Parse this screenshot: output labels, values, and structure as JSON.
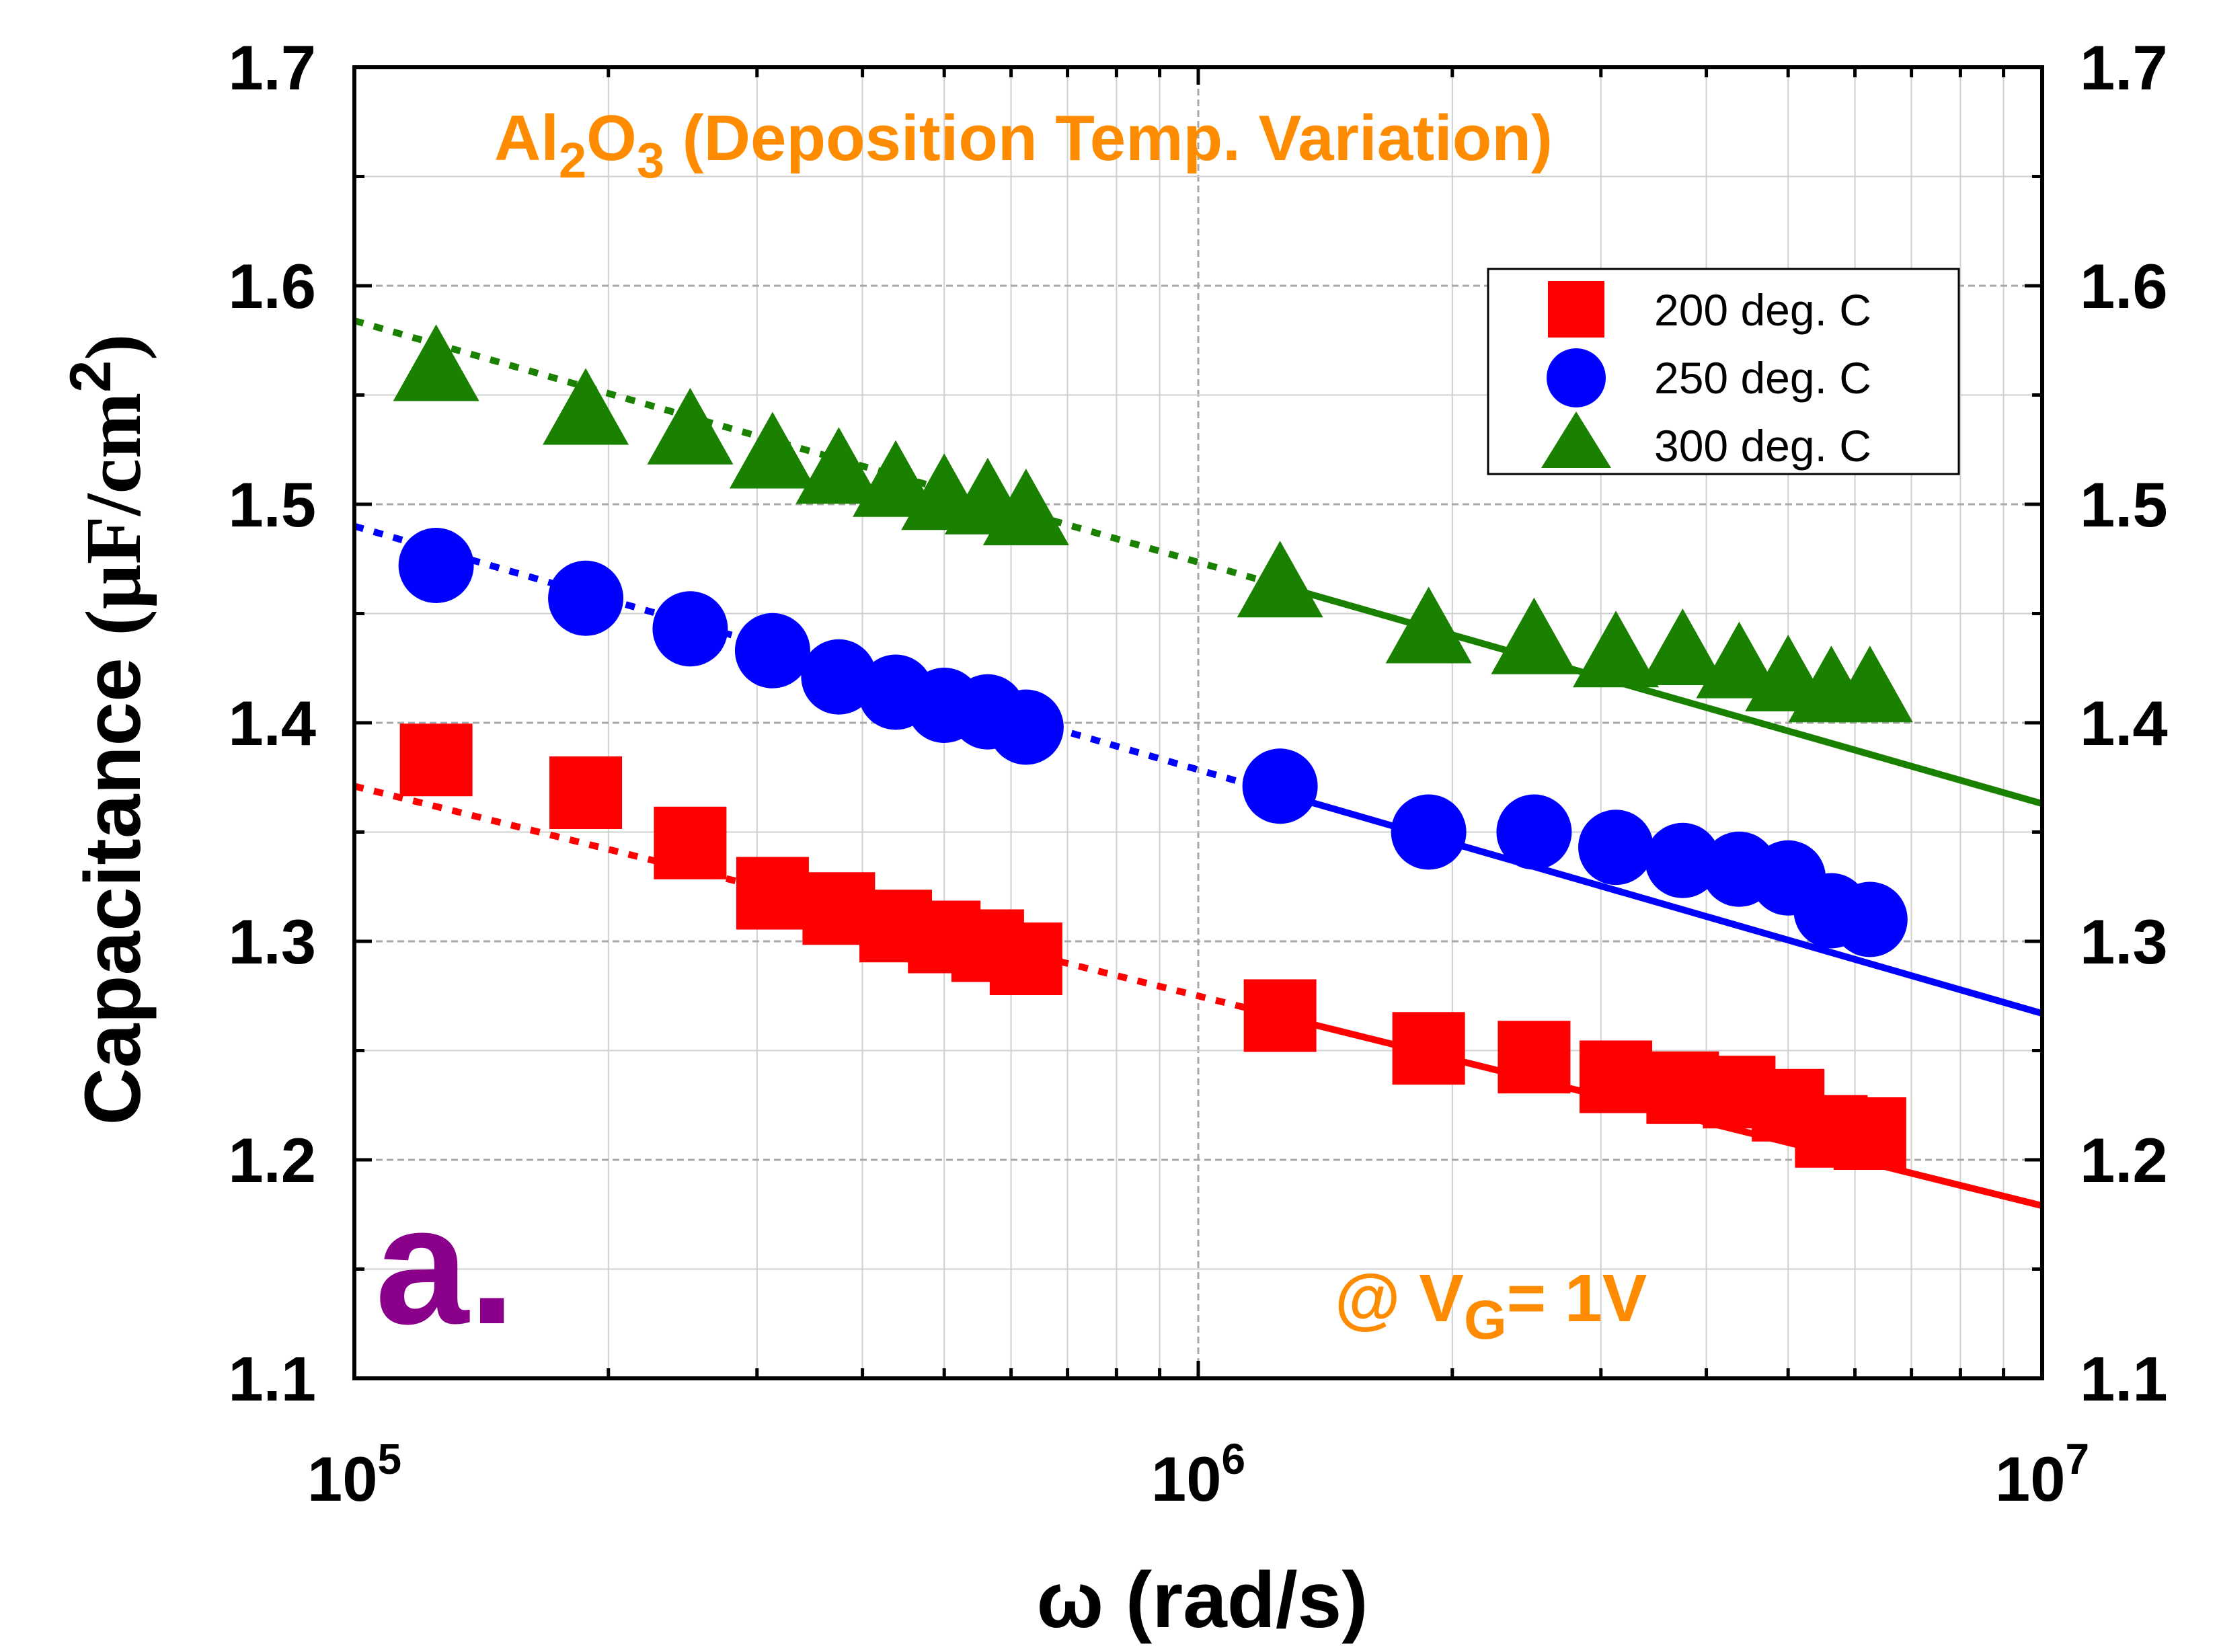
{
  "chart_data": {
    "type": "scatter",
    "title": "Al2O3 (Deposition Temp. Variation)",
    "title_parts": {
      "a": "Al",
      "b": "2",
      "c": "O",
      "d": "3",
      "e": " (Deposition Temp. Variation)"
    },
    "xlabel": "ω (rad/s)",
    "xscale": "log",
    "xlim": [
      100000,
      10000000
    ],
    "x_ticks": [
      {
        "base": "10",
        "exp": "5",
        "value": 100000
      },
      {
        "base": "10",
        "exp": "6",
        "value": 1000000
      },
      {
        "base": "10",
        "exp": "7",
        "value": 10000000
      }
    ],
    "ylabel_parts": {
      "main": "Capacitance ",
      "unit": "(μF/cm",
      "sup": "2",
      "close": ")"
    },
    "ylim": [
      1.1,
      1.7
    ],
    "y_ticks": [
      "1.1",
      "1.2",
      "1.3",
      "1.4",
      "1.5",
      "1.6",
      "1.7"
    ],
    "annotation": {
      "prefix": "@ V",
      "sub": "G",
      "suffix": "= 1V"
    },
    "panel_label": "a.",
    "grid": true,
    "legend_position": "top-right",
    "colors": {
      "s200": "#ff0000",
      "s250": "#0000ff",
      "s300": "#1a8000",
      "annotation": "#ff8c00",
      "panel": "#8b008b"
    },
    "x": [
      125000,
      188000,
      250000,
      313000,
      375000,
      438000,
      500000,
      563000,
      625000,
      1250000,
      1875000,
      2500000,
      3125000,
      3750000,
      4375000,
      5000000,
      5625000,
      6250000
    ],
    "series": [
      {
        "name": "200 deg. C",
        "marker": "square",
        "values": [
          1.383,
          1.368,
          1.345,
          1.322,
          1.315,
          1.307,
          1.302,
          1.298,
          1.292,
          1.266,
          1.251,
          1.247,
          1.238,
          1.233,
          1.231,
          1.225,
          1.213,
          1.212
        ],
        "fit": {
          "y_at_x_min": 1.371,
          "y_at_x_max": 1.179
        }
      },
      {
        "name": "250 deg. C",
        "marker": "circle",
        "values": [
          1.472,
          1.457,
          1.443,
          1.433,
          1.421,
          1.414,
          1.408,
          1.405,
          1.398,
          1.371,
          1.35,
          1.35,
          1.343,
          1.337,
          1.333,
          1.329,
          1.314,
          1.31
        ],
        "fit": {
          "y_at_x_min": 1.49,
          "y_at_x_max": 1.267
        }
      },
      {
        "name": "300 deg. C",
        "marker": "triangle",
        "values": [
          1.562,
          1.542,
          1.533,
          1.522,
          1.515,
          1.509,
          1.503,
          1.501,
          1.496,
          1.463,
          1.442,
          1.437,
          1.431,
          1.432,
          1.426,
          1.42,
          1.415,
          1.415
        ],
        "fit": {
          "y_at_x_min": 1.584,
          "y_at_x_max": 1.363
        }
      }
    ]
  }
}
